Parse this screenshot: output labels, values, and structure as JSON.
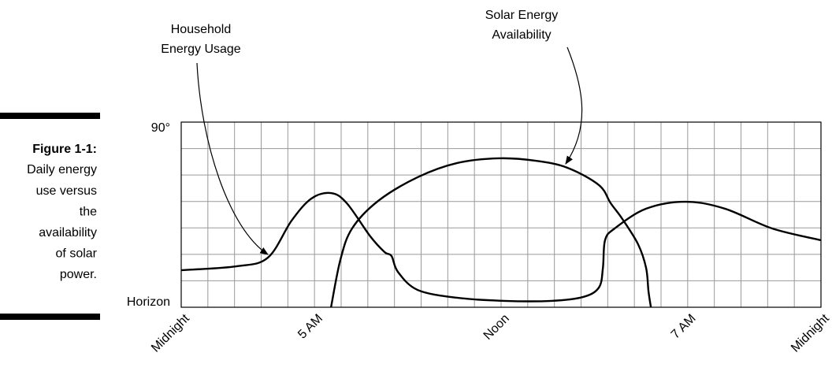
{
  "chart_data": {
    "type": "line",
    "caption": {
      "label": "Figure 1-1:",
      "lines": [
        "Daily energy",
        "use versus",
        "the",
        "availability",
        "of solar",
        "power."
      ]
    },
    "annotations": [
      {
        "lines": [
          "Household",
          "Energy Usage"
        ]
      },
      {
        "lines": [
          "Solar Energy",
          "Availability"
        ]
      }
    ],
    "xlim": [
      0,
      24
    ],
    "ylim": [
      0,
      90
    ],
    "xticks": [
      {
        "value": 0,
        "label": "Midnight"
      },
      {
        "value": 5,
        "label": "5 AM"
      },
      {
        "value": 12,
        "label": "Noon"
      },
      {
        "value": 19,
        "label": "7 AM"
      },
      {
        "value": 24,
        "label": "Midnight"
      }
    ],
    "yticks": [
      {
        "value": 0,
        "label": "Horizon"
      },
      {
        "value": 90,
        "label": "90°"
      }
    ],
    "xgrid": [
      0,
      1,
      2,
      3,
      4,
      5,
      6,
      7,
      8,
      9,
      10,
      11,
      12,
      13,
      14,
      15,
      16,
      17,
      18,
      19,
      20,
      21,
      22,
      23,
      24
    ],
    "ygrid": [
      0,
      12.86,
      25.71,
      38.57,
      51.43,
      64.29,
      77.14,
      90
    ],
    "grid": true,
    "series": [
      {
        "color": "#000000",
        "x": [
          0,
          2.07,
          3.25,
          4.14,
          4.88,
          5.62,
          6.21,
          7.09,
          7.63,
          7.89,
          8.13,
          8.87,
          10.35,
          12.12,
          13.89,
          15.08,
          15.67,
          15.82,
          15.9,
          16.26,
          17.44,
          18.92,
          20.4,
          22.17,
          24
        ],
        "values": [
          18.0,
          19.9,
          24.1,
          42.1,
          52.8,
          55.5,
          50.6,
          34.5,
          26.8,
          24.9,
          17.2,
          8.4,
          4.6,
          3.1,
          3.1,
          5.0,
          9.6,
          19.1,
          32.6,
          38.3,
          47.9,
          51.3,
          47.9,
          38.3,
          32.6
        ]
      },
      {
        "color": "#000000",
        "x": [
          5.62,
          5.97,
          6.41,
          7.39,
          8.87,
          10.35,
          11.91,
          13.3,
          14.49,
          15.67,
          16.11,
          16.55,
          17.14,
          17.44,
          17.53,
          17.62
        ],
        "values": [
          0,
          23,
          38.3,
          51.7,
          63.2,
          70.1,
          72.4,
          71.2,
          67.8,
          59.4,
          50.6,
          42.9,
          30.6,
          19.1,
          7.7,
          0
        ]
      }
    ]
  }
}
